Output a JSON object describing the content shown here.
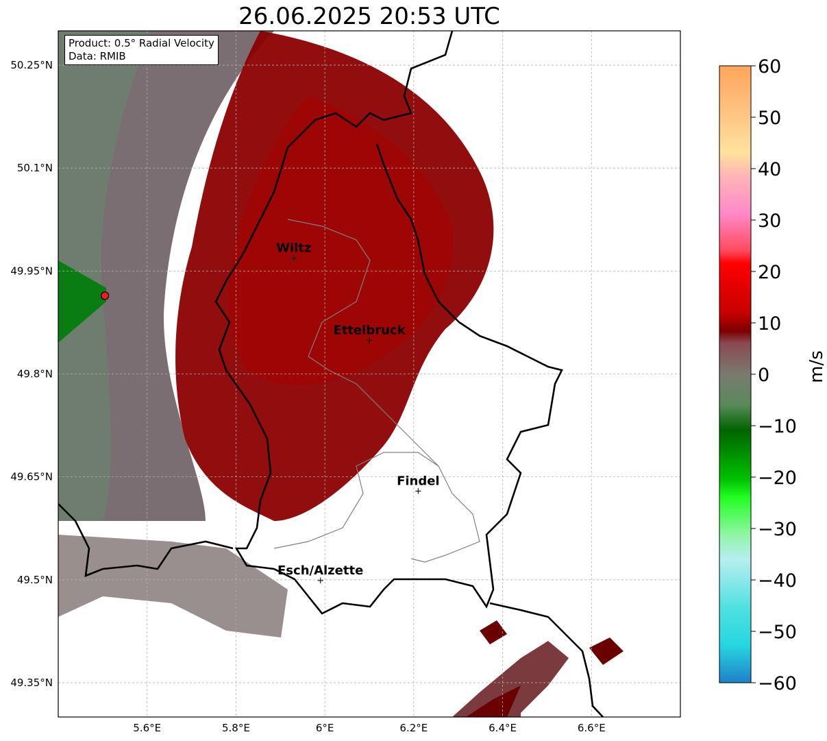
{
  "title": "26.06.2025 20:53 UTC",
  "info": {
    "product_line": "Product: 0.5° Radial Velocity",
    "data_line": "Data: RMIB"
  },
  "map": {
    "lon_ticks": [
      "5.6°E",
      "5.8°E",
      "6°E",
      "6.2°E",
      "6.4°E",
      "6.6°E"
    ],
    "lon_tick_values": [
      5.6,
      5.8,
      6.0,
      6.2,
      6.4,
      6.6
    ],
    "lat_ticks": [
      "50.25°N",
      "50.1°N",
      "49.95°N",
      "49.8°N",
      "49.65°N",
      "49.5°N",
      "49.35°N"
    ],
    "lat_tick_values": [
      50.25,
      50.1,
      49.95,
      49.8,
      49.65,
      49.5,
      49.35
    ],
    "lon_range": [
      5.4,
      6.8
    ],
    "lat_range": [
      49.3,
      50.3
    ],
    "grid": true,
    "radar_site": {
      "lon": 5.505,
      "lat": 49.914
    },
    "cities": [
      {
        "name": "Wiltz",
        "lon": 5.93,
        "lat": 49.97
      },
      {
        "name": "Ettelbruck",
        "lon": 6.1,
        "lat": 49.85
      },
      {
        "name": "Findel",
        "lon": 6.21,
        "lat": 49.63
      },
      {
        "name": "Esch/Alzette",
        "lon": 5.99,
        "lat": 49.5
      }
    ]
  },
  "colorbar": {
    "label": "m/s",
    "ticks": [
      "60",
      "50",
      "40",
      "30",
      "20",
      "10",
      "0",
      "−10",
      "−20",
      "−30",
      "−40",
      "−50",
      "−60"
    ],
    "range": [
      -60,
      60
    ],
    "colors": {
      "neg60": "#1f7fc9",
      "neg50": "#2ed6dc",
      "neg40": "#b7eef0",
      "neg30": "#5cf56a",
      "neg20": "#1fd11f",
      "neg10": "#006400",
      "zero": "#7a7a70",
      "pos10": "#7d0000",
      "pos20": "#c80000",
      "pos30": "#ff4a5e",
      "pos40": "#ff99cc",
      "pos50": "#ffe39a",
      "pos60": "#ffa55a"
    }
  }
}
